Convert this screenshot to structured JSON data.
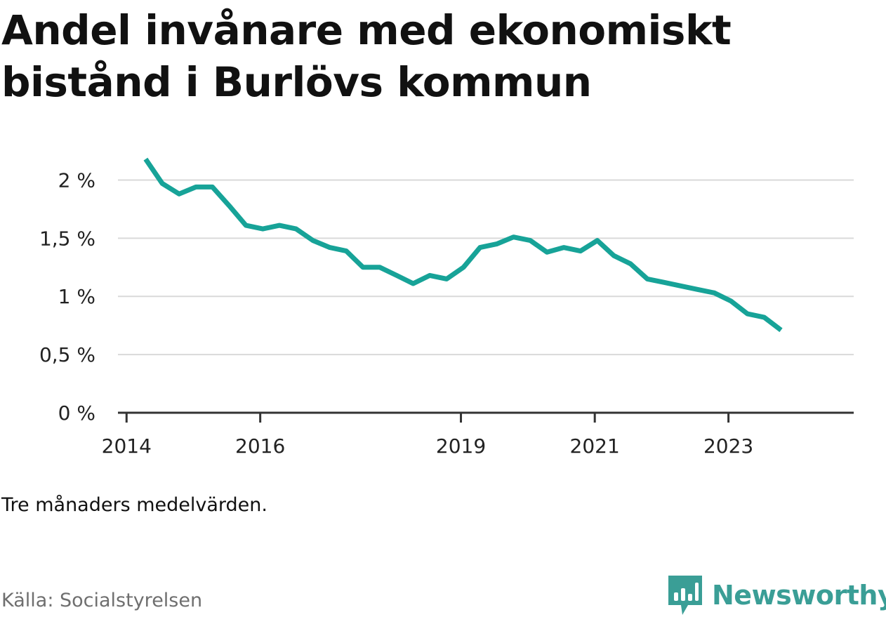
{
  "title": "Andel invånare med ekonomiskt bistånd i Burlövs kommun",
  "note": "Tre månaders medelvärden.",
  "source": "Källa: Socialstyrelsen",
  "brand": "Newsworthy",
  "colors": {
    "line": "#17a398",
    "grid": "#d9d9d9",
    "axis": "#333333",
    "brand": "#3a9e96"
  },
  "chart_data": {
    "type": "line",
    "title": "Andel invånare med ekonomiskt bistånd i Burlövs kommun",
    "xlabel": "",
    "ylabel": "",
    "ylim": [
      0,
      2.25
    ],
    "xlim": [
      "2013-11-15",
      "2024-11-15"
    ],
    "grid": true,
    "legend": "none",
    "y_ticks": [
      {
        "value": 0,
        "label": "0 %"
      },
      {
        "value": 0.5,
        "label": "0,5 %"
      },
      {
        "value": 1,
        "label": "1 %"
      },
      {
        "value": 1.5,
        "label": "1,5 %"
      },
      {
        "value": 2,
        "label": "2 %"
      }
    ],
    "x_ticks": [
      {
        "value": "2014-01-01",
        "label": "2014"
      },
      {
        "value": "2016-01-01",
        "label": "2016"
      },
      {
        "value": "2019-01-01",
        "label": "2019"
      },
      {
        "value": "2021-01-01",
        "label": "2021"
      },
      {
        "value": "2023-01-01",
        "label": "2023"
      }
    ],
    "series": [
      {
        "x": [
          "2014-04-15",
          "2014-07-15",
          "2014-10-15",
          "2015-01-15",
          "2015-04-15",
          "2015-07-15",
          "2015-10-15",
          "2016-01-15",
          "2016-04-15",
          "2016-07-15",
          "2016-10-15",
          "2017-01-15",
          "2017-04-15",
          "2017-07-15",
          "2017-10-15",
          "2018-01-15",
          "2018-04-15",
          "2018-07-15",
          "2018-10-15",
          "2019-01-15",
          "2019-04-15",
          "2019-07-15",
          "2019-10-15",
          "2020-01-15",
          "2020-04-15",
          "2020-07-15",
          "2020-10-15",
          "2021-01-15",
          "2021-04-15",
          "2021-07-15",
          "2021-10-15",
          "2022-01-15",
          "2022-04-15",
          "2022-07-15",
          "2022-10-15",
          "2023-01-15",
          "2023-04-15",
          "2023-07-15",
          "2023-10-15"
        ],
        "values": [
          2.18,
          1.97,
          1.88,
          1.94,
          1.94,
          1.78,
          1.61,
          1.58,
          1.61,
          1.58,
          1.48,
          1.42,
          1.39,
          1.25,
          1.25,
          1.18,
          1.11,
          1.18,
          1.15,
          1.25,
          1.42,
          1.45,
          1.51,
          1.48,
          1.38,
          1.42,
          1.39,
          1.48,
          1.35,
          1.28,
          1.15,
          1.12,
          1.09,
          1.06,
          1.03,
          0.96,
          0.85,
          0.82,
          0.71
        ]
      }
    ]
  }
}
